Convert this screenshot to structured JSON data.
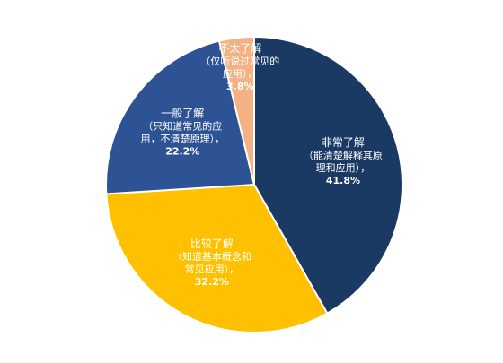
{
  "chart_data": {
    "type": "pie",
    "title": "",
    "start_angle_deg": 0,
    "direction": "clockwise",
    "slices": [
      {
        "name": "非常了解",
        "desc": [
          "（能清楚解释其原",
          "理和应用），"
        ],
        "value": 41.8,
        "percent_label": "41.8%",
        "color": "#1a3a63"
      },
      {
        "name": "比较了解",
        "desc": [
          "（知道基本概念和",
          "常见应用），"
        ],
        "value": 32.2,
        "percent_label": "32.2%",
        "color": "#ffc000"
      },
      {
        "name": "一般了解",
        "desc": [
          "（只知道常见的应",
          "用，不清楚原理），"
        ],
        "value": 22.2,
        "percent_label": "22.2%",
        "color": "#2e5395"
      },
      {
        "name": "不太了解",
        "desc": [
          "（仅听说过常见的",
          "应用），"
        ],
        "value": 3.8,
        "percent_label": "3.8%",
        "color": "#f4b183"
      }
    ],
    "legend": "none"
  }
}
